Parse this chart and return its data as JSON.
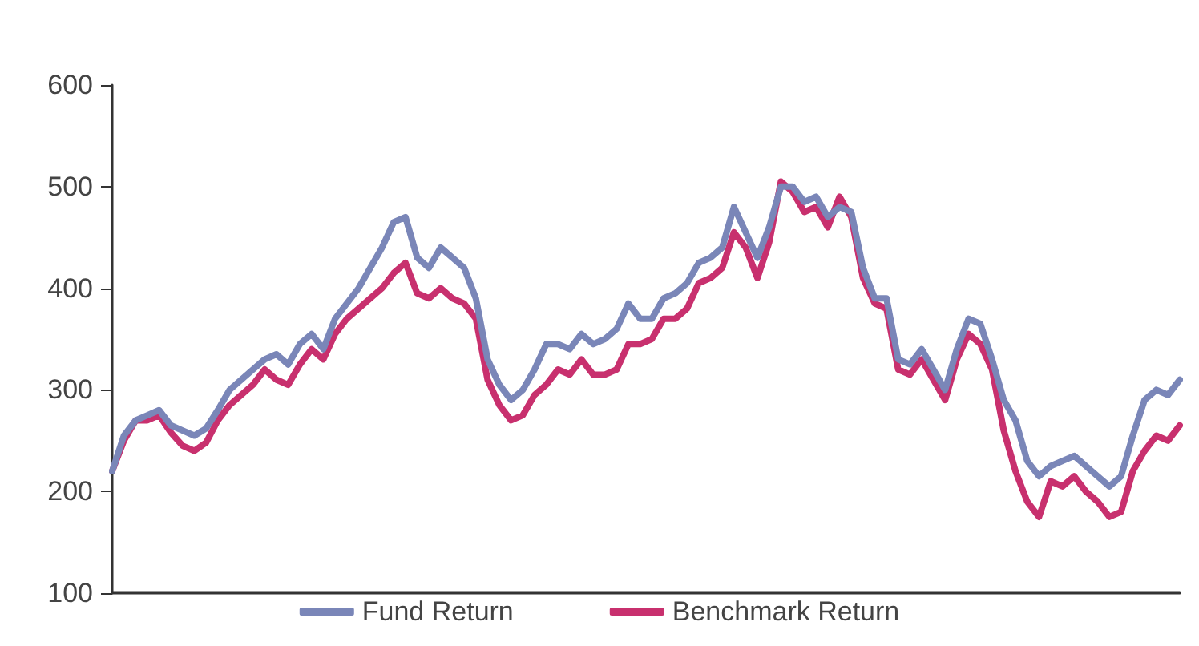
{
  "chart_data": {
    "type": "line",
    "categories": [
      null,
      null,
      null,
      null,
      null,
      null,
      null,
      null,
      null,
      null,
      null,
      null,
      null,
      null,
      null,
      null,
      null,
      null,
      null,
      null,
      null,
      null,
      null,
      null,
      null,
      null,
      null,
      null,
      null,
      null,
      null,
      null,
      null,
      null,
      null,
      null,
      null,
      null,
      null,
      null,
      null,
      null,
      null,
      null,
      null,
      null,
      null,
      null,
      null,
      null,
      null,
      null,
      null,
      null,
      null,
      null,
      null,
      null,
      null,
      null,
      null,
      null,
      null,
      null,
      null,
      null,
      null,
      null,
      null,
      null,
      null,
      null,
      null,
      null,
      null,
      null,
      null,
      null,
      null,
      null,
      null,
      null,
      null,
      null,
      null,
      null,
      null,
      null,
      null,
      null,
      null,
      null
    ],
    "series": [
      {
        "name": "Fund Return",
        "color": "#7a86b8",
        "values": [
          220,
          255,
          270,
          275,
          280,
          265,
          260,
          255,
          262,
          280,
          300,
          310,
          320,
          330,
          335,
          325,
          345,
          355,
          340,
          370,
          385,
          400,
          420,
          440,
          465,
          470,
          430,
          420,
          440,
          430,
          420,
          390,
          330,
          305,
          290,
          300,
          320,
          345,
          345,
          340,
          355,
          345,
          350,
          360,
          385,
          370,
          370,
          390,
          395,
          405,
          425,
          430,
          440,
          480,
          455,
          430,
          460,
          500,
          500,
          485,
          490,
          470,
          480,
          475,
          420,
          390,
          390,
          330,
          325,
          340,
          320,
          300,
          340,
          370,
          365,
          330,
          290,
          270,
          230,
          215,
          225,
          230,
          235,
          225,
          215,
          205,
          215,
          255,
          290,
          300,
          295,
          310
        ]
      },
      {
        "name": "Benchmark Return",
        "color": "#c8306e",
        "values": [
          220,
          250,
          270,
          270,
          275,
          258,
          245,
          240,
          248,
          270,
          285,
          295,
          305,
          320,
          310,
          305,
          325,
          340,
          330,
          355,
          370,
          380,
          390,
          400,
          415,
          425,
          395,
          390,
          400,
          390,
          385,
          370,
          310,
          285,
          270,
          275,
          295,
          305,
          320,
          315,
          330,
          315,
          315,
          320,
          345,
          345,
          350,
          370,
          370,
          380,
          405,
          410,
          420,
          455,
          440,
          410,
          445,
          505,
          495,
          475,
          480,
          460,
          490,
          470,
          410,
          385,
          380,
          320,
          315,
          330,
          310,
          290,
          330,
          355,
          345,
          320,
          260,
          220,
          190,
          175,
          210,
          205,
          215,
          200,
          190,
          175,
          180,
          220,
          240,
          255,
          250,
          265
        ]
      }
    ],
    "ylim": [
      100,
      600
    ],
    "yticks": [
      100,
      200,
      300,
      400,
      500,
      600
    ],
    "grid": false,
    "legend": "bottom",
    "tick_labels": "y",
    "line_style": "solid"
  }
}
